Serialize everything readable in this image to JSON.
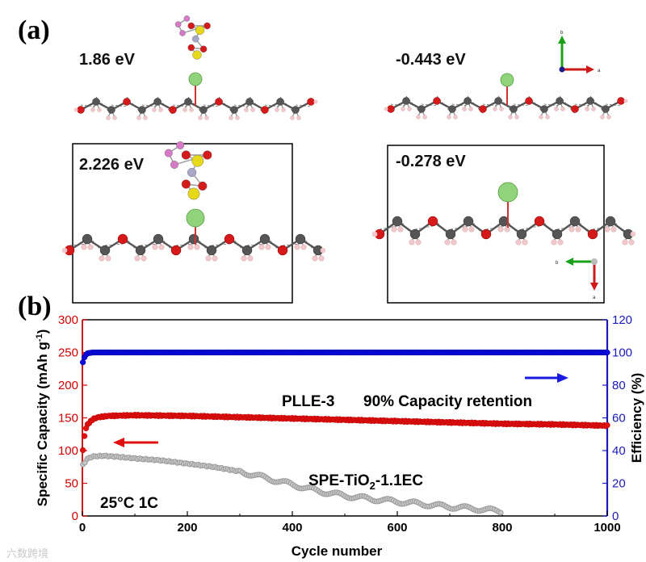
{
  "panels": {
    "a_label": "(a)",
    "b_label": "(b)"
  },
  "structures": {
    "top_left_energy": "1.86 eV",
    "top_right_energy": "-0.443 eV",
    "bottom_left_energy": "2.226 eV",
    "bottom_right_energy": "-0.278 eV",
    "axes_top": {
      "b": "b",
      "a": "a"
    },
    "axes_bottom": {
      "b": "b",
      "a": "a"
    }
  },
  "colors": {
    "oxygen": "#d41a1a",
    "carbon": "#555555",
    "hydrogen": "#f0c8cc",
    "lithium": "#8fd47a",
    "sulfur": "#e8d81a",
    "fluorine": "#d77ac8",
    "nitrogen": "#a8a8c8",
    "plle": "#e01010",
    "spe": "#9a9a9a",
    "efficiency": "#0a0ae0",
    "left_axis": "#d00000",
    "right_axis": "#1a1ab8"
  },
  "chart_data": {
    "type": "scatter",
    "xlabel": "Cycle number",
    "ylabel_left": "Specific Capacity (mAh g",
    "ylabel_left_sup": "-1",
    "ylabel_left_end": ")",
    "ylabel_right": "Efficiency (%)",
    "xlim": [
      0,
      1000
    ],
    "ylim_left": [
      0,
      300
    ],
    "ylim_right": [
      0,
      120
    ],
    "x_ticks": [
      "0",
      "200",
      "400",
      "600",
      "800",
      "1000"
    ],
    "y_left_ticks": [
      "0",
      "50",
      "100",
      "150",
      "200",
      "250",
      "300"
    ],
    "y_right_ticks": [
      "0",
      "20",
      "40",
      "60",
      "80",
      "100",
      "120"
    ],
    "series": [
      {
        "name": "PLLE-3",
        "axis": "left",
        "x": [
          1,
          5,
          10,
          20,
          30,
          50,
          100,
          200,
          300,
          400,
          500,
          600,
          700,
          800,
          900,
          1000
        ],
        "values": [
          100,
          130,
          140,
          148,
          151,
          153,
          154,
          153,
          151,
          149,
          147,
          145,
          143,
          141,
          140,
          138
        ]
      },
      {
        "name": "SPE-TiO2-1.1EC",
        "axis": "left",
        "x": [
          1,
          10,
          20,
          40,
          60,
          100,
          150,
          200,
          250,
          300,
          350,
          400,
          450,
          500,
          550,
          600,
          650,
          700,
          750,
          800
        ],
        "values": [
          78,
          88,
          91,
          92,
          91,
          88,
          85,
          80,
          75,
          68,
          58,
          48,
          38,
          31,
          26,
          22,
          18,
          14,
          11,
          7
        ]
      },
      {
        "name": "Efficiency",
        "axis": "right",
        "x": [
          1,
          5,
          10,
          20,
          50,
          100,
          1000
        ],
        "values": [
          94,
          98,
          99.5,
          100,
          100,
          100,
          100
        ]
      }
    ],
    "annotations": {
      "plle_label": "PLLE-3",
      "retention": "90% Capacity retention",
      "spe_label_main": "SPE-TiO",
      "spe_label_sub": "2",
      "spe_label_end": "-1.1EC",
      "conditions": "25°C  1C"
    }
  },
  "watermark": {
    "text": "六数跨境"
  }
}
